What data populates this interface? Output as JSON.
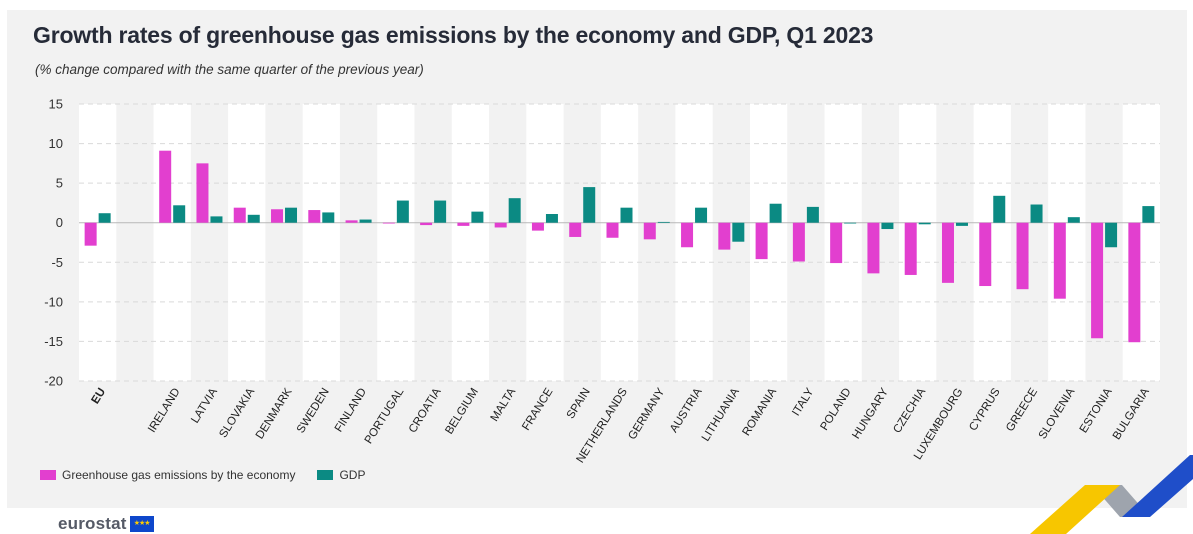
{
  "title": "Growth rates of greenhouse gas emissions by the economy and GDP, Q1 2023",
  "subtitle": "(% change compared with the same quarter of the previous year)",
  "brand": {
    "name": "eurostat",
    "flag_color": "#0e47cb",
    "star_color": "#ffcc00"
  },
  "decoration_colors": {
    "yellow": "#f7c600",
    "blue": "#1f4ec9",
    "gray": "#9ea4ad"
  },
  "chart_data": {
    "type": "bar",
    "title": "Growth rates of greenhouse gas emissions by the economy and GDP, Q1 2023",
    "subtitle": "(% change compared with the same quarter of the previous year)",
    "xlabel": "",
    "ylabel": "",
    "ylim": [
      -20,
      15
    ],
    "yticks": [
      15,
      10,
      5,
      0,
      -5,
      -10,
      -15,
      -20
    ],
    "grid": true,
    "legend_position": "bottom-left",
    "categories": [
      "EU",
      "",
      "IRELAND",
      "LATVIA",
      "SLOVAKIA",
      "DENMARK",
      "SWEDEN",
      "FINLAND",
      "PORTUGAL",
      "CROATIA",
      "BELGIUM",
      "MALTA",
      "FRANCE",
      "SPAIN",
      "NETHERLANDS",
      "GERMANY",
      "AUSTRIA",
      "LITHUANIA",
      "ROMANIA",
      "ITALY",
      "POLAND",
      "HUNGARY",
      "CZECHIA",
      "LUXEMBOURG",
      "CYPRUS",
      "GREECE",
      "SLOVENIA",
      "ESTONIA",
      "BULGARIA"
    ],
    "series": [
      {
        "name": "Greenhouse gas emissions by the economy",
        "color": "#e23fcf",
        "values": [
          -2.9,
          null,
          9.1,
          7.5,
          1.9,
          1.7,
          1.6,
          0.3,
          -0.1,
          -0.3,
          -0.4,
          -0.6,
          -1.0,
          -1.8,
          -1.9,
          -2.1,
          -3.1,
          -3.4,
          -4.6,
          -4.9,
          -5.1,
          -6.4,
          -6.6,
          -7.6,
          -8.0,
          -8.4,
          -9.6,
          -14.6,
          -15.1
        ]
      },
      {
        "name": "GDP",
        "color": "#0b8a83",
        "values": [
          1.2,
          null,
          2.2,
          0.8,
          1.0,
          1.9,
          1.3,
          0.4,
          2.8,
          2.8,
          1.4,
          3.1,
          1.1,
          4.5,
          1.9,
          0.1,
          1.9,
          -2.4,
          2.4,
          2.0,
          -0.1,
          -0.8,
          -0.2,
          -0.4,
          3.4,
          2.3,
          0.7,
          -3.1,
          2.1
        ]
      }
    ]
  }
}
